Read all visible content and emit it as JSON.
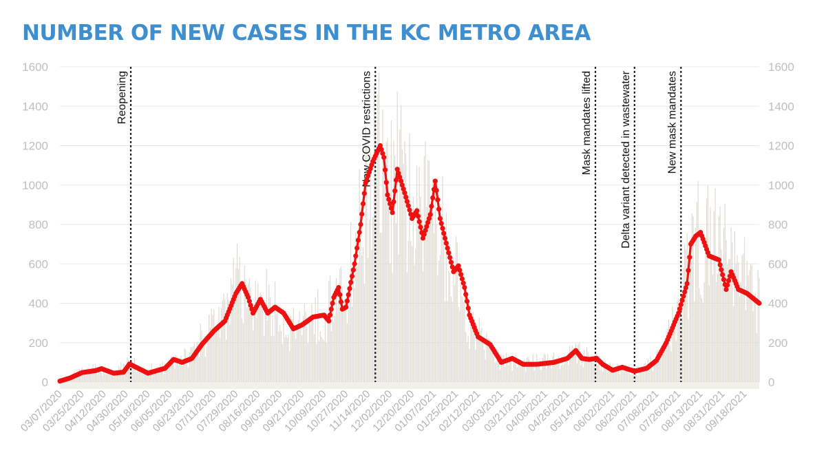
{
  "chart_data": {
    "type": "bar",
    "title": "NUMBER OF NEW CASES IN THE KC METRO AREA",
    "xlabel": "",
    "ylabel": "",
    "ylim": [
      0,
      1600
    ],
    "yticks": [
      0,
      200,
      400,
      600,
      800,
      1000,
      1200,
      1400,
      1600
    ],
    "x_range": [
      "2020-03-07",
      "2021-09-30"
    ],
    "x_tick_labels": [
      "03/07/2020",
      "03/25/2020",
      "04/12/2020",
      "04/30/2020",
      "05/18/2020",
      "06/05/2020",
      "06/23/2020",
      "07/11/2020",
      "07/29/2020",
      "08/16/2020",
      "09/03/2020",
      "09/21/2020",
      "10/09/2020",
      "10/27/2020",
      "11/14/2020",
      "12/02/2020",
      "12/20/2020",
      "01/07/2021",
      "01/25/2021",
      "02/12/2021",
      "03/03/2021",
      "03/21/2021",
      "04/08/2021",
      "04/26/2021",
      "05/14/2021",
      "06/02/2021",
      "06/20/2021",
      "07/08/2021",
      "07/26/2021",
      "08/13/2021",
      "08/31/2021",
      "09/18/2021"
    ],
    "grid": true,
    "dual_y_axis": true,
    "colors": {
      "bars": "#ddd8cf",
      "line": "#ee1111",
      "title": "#3d8fd0",
      "grid": "#e8e8e8",
      "event_line": "#222222"
    },
    "series": [
      {
        "kind": "bar",
        "frequency": "daily",
        "keypoints": [
          {
            "date": "2020-03-07",
            "value": 5
          },
          {
            "date": "2020-03-15",
            "value": 25
          },
          {
            "date": "2020-03-25",
            "value": 55
          },
          {
            "date": "2020-04-05",
            "value": 65
          },
          {
            "date": "2020-04-20",
            "value": 45
          },
          {
            "date": "2020-05-03",
            "value": 95
          },
          {
            "date": "2020-05-14",
            "value": 50
          },
          {
            "date": "2020-06-05",
            "value": 80
          },
          {
            "date": "2020-06-12",
            "value": 110
          },
          {
            "date": "2020-06-23",
            "value": 130
          },
          {
            "date": "2020-07-01",
            "value": 200
          },
          {
            "date": "2020-07-11",
            "value": 270
          },
          {
            "date": "2020-07-20",
            "value": 330
          },
          {
            "date": "2020-07-29",
            "value": 470
          },
          {
            "date": "2020-08-03",
            "value": 480
          },
          {
            "date": "2020-08-10",
            "value": 360
          },
          {
            "date": "2020-08-18",
            "value": 410
          },
          {
            "date": "2020-08-25",
            "value": 360
          },
          {
            "date": "2020-09-03",
            "value": 350
          },
          {
            "date": "2020-09-12",
            "value": 270
          },
          {
            "date": "2020-09-25",
            "value": 320
          },
          {
            "date": "2020-10-09",
            "value": 340
          },
          {
            "date": "2020-10-16",
            "value": 420
          },
          {
            "date": "2020-10-21",
            "value": 390
          },
          {
            "date": "2020-10-27",
            "value": 470
          },
          {
            "date": "2020-11-05",
            "value": 700
          },
          {
            "date": "2020-11-14",
            "value": 1000
          },
          {
            "date": "2020-11-22",
            "value": 1150
          },
          {
            "date": "2020-11-30",
            "value": 900
          },
          {
            "date": "2020-12-07",
            "value": 1050
          },
          {
            "date": "2020-12-16",
            "value": 850
          },
          {
            "date": "2020-12-26",
            "value": 760
          },
          {
            "date": "2021-01-07",
            "value": 980
          },
          {
            "date": "2021-01-16",
            "value": 700
          },
          {
            "date": "2021-01-25",
            "value": 560
          },
          {
            "date": "2021-02-05",
            "value": 300
          },
          {
            "date": "2021-02-12",
            "value": 220
          },
          {
            "date": "2021-03-01",
            "value": 110
          },
          {
            "date": "2021-03-21",
            "value": 95
          },
          {
            "date": "2021-04-15",
            "value": 105
          },
          {
            "date": "2021-05-03",
            "value": 150
          },
          {
            "date": "2021-05-14",
            "value": 120
          },
          {
            "date": "2021-06-02",
            "value": 70
          },
          {
            "date": "2021-06-25",
            "value": 60
          },
          {
            "date": "2021-07-08",
            "value": 110
          },
          {
            "date": "2021-07-26",
            "value": 350
          },
          {
            "date": "2021-08-05",
            "value": 620
          },
          {
            "date": "2021-08-13",
            "value": 750
          },
          {
            "date": "2021-08-25",
            "value": 640
          },
          {
            "date": "2021-09-05",
            "value": 560
          },
          {
            "date": "2021-09-18",
            "value": 480
          },
          {
            "date": "2021-09-30",
            "value": 400
          }
        ]
      },
      {
        "kind": "line",
        "frequency": "daily",
        "keypoints": [
          {
            "date": "2020-03-07",
            "value": 5
          },
          {
            "date": "2020-03-15",
            "value": 20
          },
          {
            "date": "2020-03-25",
            "value": 48
          },
          {
            "date": "2020-04-05",
            "value": 58
          },
          {
            "date": "2020-04-10",
            "value": 68
          },
          {
            "date": "2020-04-20",
            "value": 45
          },
          {
            "date": "2020-04-28",
            "value": 50
          },
          {
            "date": "2020-05-03",
            "value": 92
          },
          {
            "date": "2020-05-10",
            "value": 70
          },
          {
            "date": "2020-05-18",
            "value": 45
          },
          {
            "date": "2020-06-01",
            "value": 70
          },
          {
            "date": "2020-06-08",
            "value": 115
          },
          {
            "date": "2020-06-15",
            "value": 100
          },
          {
            "date": "2020-06-23",
            "value": 120
          },
          {
            "date": "2020-07-01",
            "value": 190
          },
          {
            "date": "2020-07-11",
            "value": 260
          },
          {
            "date": "2020-07-20",
            "value": 310
          },
          {
            "date": "2020-07-29",
            "value": 450
          },
          {
            "date": "2020-08-03",
            "value": 500
          },
          {
            "date": "2020-08-08",
            "value": 430
          },
          {
            "date": "2020-08-12",
            "value": 350
          },
          {
            "date": "2020-08-18",
            "value": 420
          },
          {
            "date": "2020-08-24",
            "value": 350
          },
          {
            "date": "2020-08-30",
            "value": 380
          },
          {
            "date": "2020-09-06",
            "value": 350
          },
          {
            "date": "2020-09-14",
            "value": 270
          },
          {
            "date": "2020-09-21",
            "value": 290
          },
          {
            "date": "2020-09-30",
            "value": 330
          },
          {
            "date": "2020-10-09",
            "value": 340
          },
          {
            "date": "2020-10-13",
            "value": 310
          },
          {
            "date": "2020-10-17",
            "value": 430
          },
          {
            "date": "2020-10-21",
            "value": 480
          },
          {
            "date": "2020-10-24",
            "value": 370
          },
          {
            "date": "2020-10-27",
            "value": 380
          },
          {
            "date": "2020-11-03",
            "value": 600
          },
          {
            "date": "2020-11-08",
            "value": 800
          },
          {
            "date": "2020-11-12",
            "value": 1010
          },
          {
            "date": "2020-11-18",
            "value": 1120
          },
          {
            "date": "2020-11-24",
            "value": 1200
          },
          {
            "date": "2020-11-27",
            "value": 1140
          },
          {
            "date": "2020-11-30",
            "value": 950
          },
          {
            "date": "2020-12-04",
            "value": 860
          },
          {
            "date": "2020-12-08",
            "value": 1080
          },
          {
            "date": "2020-12-14",
            "value": 960
          },
          {
            "date": "2020-12-20",
            "value": 830
          },
          {
            "date": "2020-12-24",
            "value": 870
          },
          {
            "date": "2020-12-29",
            "value": 730
          },
          {
            "date": "2021-01-04",
            "value": 850
          },
          {
            "date": "2021-01-08",
            "value": 1020
          },
          {
            "date": "2021-01-12",
            "value": 830
          },
          {
            "date": "2021-01-18",
            "value": 680
          },
          {
            "date": "2021-01-23",
            "value": 560
          },
          {
            "date": "2021-01-27",
            "value": 590
          },
          {
            "date": "2021-02-01",
            "value": 480
          },
          {
            "date": "2021-02-05",
            "value": 340
          },
          {
            "date": "2021-02-12",
            "value": 230
          },
          {
            "date": "2021-02-22",
            "value": 190
          },
          {
            "date": "2021-03-03",
            "value": 100
          },
          {
            "date": "2021-03-12",
            "value": 120
          },
          {
            "date": "2021-03-21",
            "value": 90
          },
          {
            "date": "2021-04-01",
            "value": 90
          },
          {
            "date": "2021-04-15",
            "value": 100
          },
          {
            "date": "2021-04-26",
            "value": 120
          },
          {
            "date": "2021-05-03",
            "value": 160
          },
          {
            "date": "2021-05-08",
            "value": 120
          },
          {
            "date": "2021-05-14",
            "value": 115
          },
          {
            "date": "2021-05-20",
            "value": 120
          },
          {
            "date": "2021-05-25",
            "value": 90
          },
          {
            "date": "2021-06-02",
            "value": 60
          },
          {
            "date": "2021-06-10",
            "value": 75
          },
          {
            "date": "2021-06-20",
            "value": 55
          },
          {
            "date": "2021-06-30",
            "value": 70
          },
          {
            "date": "2021-07-08",
            "value": 110
          },
          {
            "date": "2021-07-16",
            "value": 200
          },
          {
            "date": "2021-07-26",
            "value": 350
          },
          {
            "date": "2021-08-02",
            "value": 500
          },
          {
            "date": "2021-08-05",
            "value": 700
          },
          {
            "date": "2021-08-09",
            "value": 740
          },
          {
            "date": "2021-08-13",
            "value": 760
          },
          {
            "date": "2021-08-20",
            "value": 640
          },
          {
            "date": "2021-08-28",
            "value": 620
          },
          {
            "date": "2021-09-03",
            "value": 470
          },
          {
            "date": "2021-09-07",
            "value": 560
          },
          {
            "date": "2021-09-13",
            "value": 470
          },
          {
            "date": "2021-09-20",
            "value": 450
          },
          {
            "date": "2021-09-30",
            "value": 400
          }
        ]
      }
    ],
    "annotations": [
      {
        "label": "Reopening",
        "date": "2020-05-04"
      },
      {
        "label": "New COVID restrictions",
        "date": "2020-11-20"
      },
      {
        "label": "Mask mandates lifted",
        "date": "2021-05-19"
      },
      {
        "label": "Delta variant detected in wastewater",
        "date": "2021-06-20"
      },
      {
        "label": "New mask mandates",
        "date": "2021-07-28"
      }
    ]
  }
}
